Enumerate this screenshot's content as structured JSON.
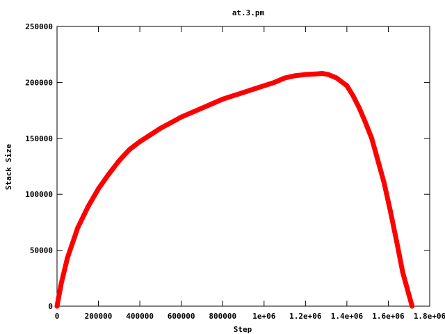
{
  "chart_data": {
    "type": "line",
    "title": "at.3.pm",
    "xlabel": "Step",
    "ylabel": "Stack Size",
    "xlim": [
      0,
      1800000
    ],
    "ylim": [
      0,
      250000
    ],
    "x_ticks": [
      {
        "value": 0,
        "label": "0"
      },
      {
        "value": 200000,
        "label": "200000"
      },
      {
        "value": 400000,
        "label": "400000"
      },
      {
        "value": 600000,
        "label": "600000"
      },
      {
        "value": 800000,
        "label": "800000"
      },
      {
        "value": 1000000,
        "label": "1e+06"
      },
      {
        "value": 1200000,
        "label": "1.2e+06"
      },
      {
        "value": 1400000,
        "label": "1.4e+06"
      },
      {
        "value": 1600000,
        "label": "1.6e+06"
      },
      {
        "value": 1800000,
        "label": "1.8e+06"
      }
    ],
    "y_ticks": [
      {
        "value": 0,
        "label": "0"
      },
      {
        "value": 50000,
        "label": "50000"
      },
      {
        "value": 100000,
        "label": "100000"
      },
      {
        "value": 150000,
        "label": "150000"
      },
      {
        "value": 200000,
        "label": "200000"
      },
      {
        "value": 250000,
        "label": "250000"
      }
    ],
    "grid": false,
    "legend": "none",
    "series": [
      {
        "color": "#ff0000",
        "x": [
          0,
          20000,
          50000,
          100000,
          150000,
          200000,
          250000,
          300000,
          350000,
          400000,
          450000,
          500000,
          550000,
          600000,
          650000,
          700000,
          750000,
          800000,
          850000,
          900000,
          950000,
          1000000,
          1050000,
          1100000,
          1150000,
          1200000,
          1250000,
          1280000,
          1310000,
          1350000,
          1400000,
          1430000,
          1460000,
          1490000,
          1520000,
          1550000,
          1580000,
          1610000,
          1640000,
          1670000,
          1700000,
          1715000
        ],
        "y": [
          0,
          20000,
          43000,
          70000,
          89000,
          105000,
          118000,
          130000,
          140000,
          147000,
          153000,
          159000,
          164000,
          169000,
          173000,
          177000,
          181000,
          185000,
          188000,
          191000,
          194000,
          197000,
          200000,
          204000,
          206000,
          207000,
          207500,
          208000,
          207000,
          204000,
          197000,
          188000,
          177000,
          164000,
          150000,
          130000,
          110000,
          85000,
          58000,
          30000,
          10000,
          0
        ]
      }
    ]
  }
}
